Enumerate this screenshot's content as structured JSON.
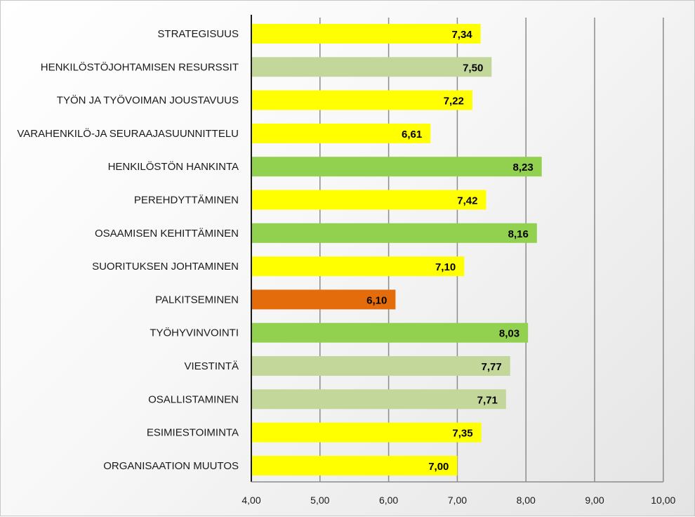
{
  "chart_data": {
    "type": "bar",
    "orientation": "horizontal",
    "categories": [
      "STRATEGISUUS",
      "HENKILÖSTÖJOHTAMISEN RESURSSIT",
      "TYÖN JA TYÖVOIMAN JOUSTAVUUS",
      "VARAHENKILÖ-JA SEURAAJASUUNNITTELU",
      "HENKILÖSTÖN HANKINTA",
      "PEREHDYTTÄMINEN",
      "OSAAMISEN KEHITTÄMINEN",
      "SUORITUKSEN JOHTAMINEN",
      "PALKITSEMINEN",
      "TYÖHYVINVOINTI",
      "VIESTINTÄ",
      "OSALLISTAMINEN",
      "ESIMIESTOIMINTA",
      "ORGANISAATION MUUTOS"
    ],
    "values": [
      7.34,
      7.5,
      7.22,
      6.61,
      8.23,
      7.42,
      8.16,
      7.1,
      6.1,
      8.03,
      7.77,
      7.71,
      7.35,
      7.0
    ],
    "value_labels": [
      "7,34",
      "7,50",
      "7,22",
      "6,61",
      "8,23",
      "7,42",
      "8,16",
      "7,10",
      "6,10",
      "8,03",
      "7,77",
      "7,71",
      "7,35",
      "7,00"
    ],
    "bar_colors": [
      "#ffff00",
      "#c4d79b",
      "#ffff00",
      "#ffff00",
      "#92d050",
      "#ffff00",
      "#92d050",
      "#ffff00",
      "#e46c0a",
      "#92d050",
      "#c4d79b",
      "#c4d79b",
      "#ffff00",
      "#ffff00"
    ],
    "xlim": [
      4,
      10
    ],
    "x_ticks": [
      4,
      5,
      6,
      7,
      8,
      9,
      10
    ],
    "x_tick_labels": [
      "4,00",
      "5,00",
      "6,00",
      "7,00",
      "8,00",
      "9,00",
      "10,00"
    ],
    "grid": "vertical",
    "legend": "none"
  }
}
